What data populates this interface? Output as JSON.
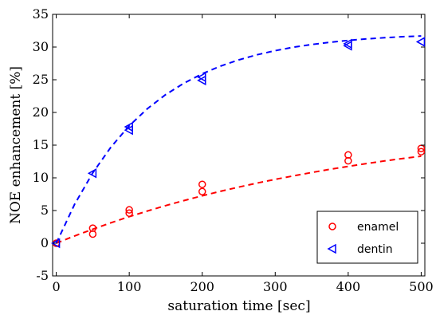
{
  "chart_data": {
    "type": "scatter",
    "xlabel": "saturation time [sec]",
    "ylabel": "NOE enhancement [%]",
    "xlim": [
      -5,
      505
    ],
    "ylim": [
      -5,
      35
    ],
    "xticks": [
      0,
      100,
      200,
      300,
      400,
      500
    ],
    "yticks": [
      -5,
      0,
      5,
      10,
      15,
      20,
      25,
      30,
      35
    ],
    "grid": false,
    "legend_position": "bottom-right",
    "series": [
      {
        "name": "enamel",
        "color": "#ff0000",
        "marker": "circle",
        "points": [
          {
            "x": 0,
            "y": 0
          },
          {
            "x": 50,
            "y": 2.3
          },
          {
            "x": 50,
            "y": 1.4
          },
          {
            "x": 100,
            "y": 5.1
          },
          {
            "x": 100,
            "y": 4.6
          },
          {
            "x": 200,
            "y": 9.0
          },
          {
            "x": 200,
            "y": 7.9
          },
          {
            "x": 400,
            "y": 13.5
          },
          {
            "x": 400,
            "y": 12.6
          },
          {
            "x": 500,
            "y": 14.5
          },
          {
            "x": 500,
            "y": 14.0
          }
        ],
        "fit": {
          "style": "dashed",
          "x": [
            0,
            25,
            50,
            75,
            100,
            125,
            150,
            175,
            200,
            225,
            250,
            275,
            300,
            325,
            350,
            375,
            400,
            425,
            450,
            475,
            500
          ],
          "y": [
            0,
            1.11,
            2.15,
            3.13,
            4.06,
            4.93,
            5.76,
            6.53,
            7.26,
            7.94,
            8.59,
            9.2,
            9.77,
            10.31,
            10.82,
            11.3,
            11.75,
            12.18,
            12.58,
            12.96,
            13.31
          ]
        }
      },
      {
        "name": "dentin",
        "color": "#0000ff",
        "marker": "triangle-left",
        "points": [
          {
            "x": 0,
            "y": 0
          },
          {
            "x": 50,
            "y": 10.7
          },
          {
            "x": 100,
            "y": 17.8
          },
          {
            "x": 100,
            "y": 17.3
          },
          {
            "x": 200,
            "y": 25.4
          },
          {
            "x": 200,
            "y": 24.9
          },
          {
            "x": 400,
            "y": 30.5
          },
          {
            "x": 400,
            "y": 30.2
          },
          {
            "x": 500,
            "y": 30.8
          }
        ],
        "fit": {
          "style": "dashed",
          "x": [
            0,
            25,
            50,
            75,
            100,
            125,
            150,
            175,
            200,
            225,
            250,
            275,
            300,
            325,
            350,
            375,
            400,
            425,
            450,
            475,
            500
          ],
          "y": [
            0,
            5.93,
            10.77,
            14.72,
            17.95,
            20.59,
            22.73,
            24.48,
            25.92,
            27.08,
            28.04,
            28.82,
            29.45,
            29.97,
            30.39,
            30.73,
            31.01,
            31.24,
            31.43,
            31.58,
            31.7
          ]
        }
      }
    ]
  }
}
